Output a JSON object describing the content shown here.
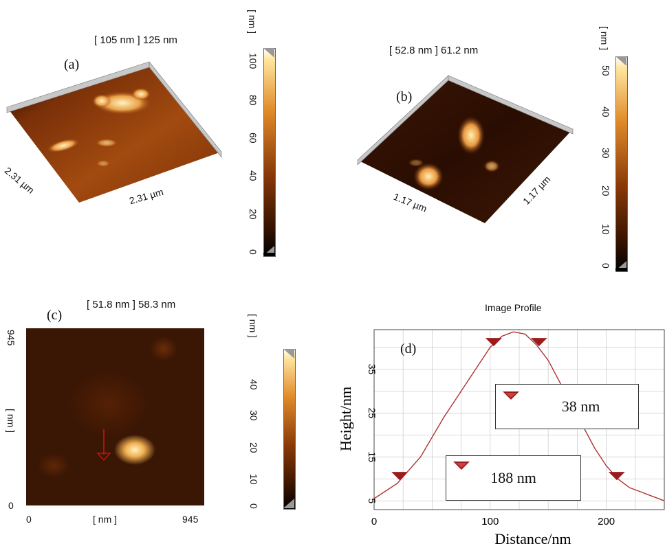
{
  "panels": {
    "a": {
      "label": "(a)",
      "range": "[ 105 nm ] 125 nm",
      "side_left": "2.31 µm",
      "side_right": "2.31 µm",
      "scale_unit": "[ nm ]",
      "scale_ticks": [
        "100",
        "80",
        "60",
        "40",
        "20",
        "0"
      ]
    },
    "b": {
      "label": "(b)",
      "range": "[ 52.8 nm ] 61.2 nm",
      "side_left": "1.17 µm",
      "side_right": "1.17 µm",
      "scale_unit": "[ nm ]",
      "scale_ticks": [
        "50",
        "40",
        "30",
        "20",
        "10",
        "0"
      ]
    },
    "c": {
      "label": "(c)",
      "range": "[ 51.8 nm ] 58.3 nm",
      "y_unit": "[ nm ]",
      "y_top": "945",
      "y_bottom": "0",
      "x_left": "0",
      "x_unit": "[ nm ]",
      "x_right": "945",
      "scale_unit": "[ nm ]",
      "scale_ticks": [
        "40",
        "30",
        "20",
        "10",
        "0"
      ]
    },
    "d": {
      "label": "(d)",
      "title": "Image Profile",
      "box1": "38 nm",
      "box2": "188 nm"
    }
  },
  "colors": {
    "afm_dark": "#1a0700",
    "afm_mid": "#8a3a08",
    "afm_bright": "#ffe6a0",
    "profile_line": "#b03030",
    "marker": "#9b1c1c"
  },
  "chart_data": {
    "type": "line",
    "title": "Image Profile",
    "xlabel": "Distance/nm",
    "ylabel": "Height/nm",
    "xlim": [
      0,
      250
    ],
    "ylim": [
      3,
      44
    ],
    "x_ticks": [
      0,
      100,
      200
    ],
    "y_ticks": [
      5,
      15,
      25,
      35
    ],
    "x": [
      0,
      20,
      40,
      60,
      80,
      100,
      110,
      120,
      130,
      140,
      150,
      160,
      170,
      180,
      190,
      200,
      210,
      220,
      230,
      240,
      250
    ],
    "y": [
      5.5,
      9,
      15,
      24,
      32,
      40,
      42.5,
      43.5,
      43,
      40.5,
      37,
      32,
      27,
      22,
      17,
      13,
      10,
      8,
      7,
      6,
      5
    ],
    "markers": [
      [
        22,
        10.5
      ],
      [
        103,
        41
      ],
      [
        142,
        41
      ],
      [
        209,
        10.5
      ],
      [
        118,
        31
      ],
      [
        75,
        13.5
      ]
    ]
  }
}
